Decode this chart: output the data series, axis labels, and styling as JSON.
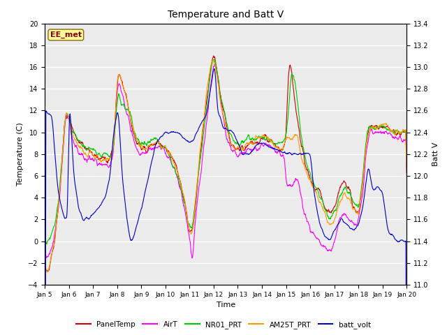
{
  "title": "Temperature and Batt V",
  "xlabel": "Time",
  "ylabel_left": "Temperature (C)",
  "ylabel_right": "Batt V",
  "annotation": "EE_met",
  "x_tick_labels": [
    "Jan 5",
    "Jan 6",
    "Jan 7",
    "Jan 8",
    "Jan 9",
    "Jan 10",
    "Jan 11",
    "Jan 12",
    "Jan 13",
    "Jan 14",
    "Jan 15",
    "Jan 16",
    "Jan 17",
    "Jan 18",
    "Jan 19",
    "Jan 20"
  ],
  "ylim_left": [
    -4,
    20
  ],
  "ylim_right": [
    11.0,
    13.4
  ],
  "yticks_left": [
    -4,
    -2,
    0,
    2,
    4,
    6,
    8,
    10,
    12,
    14,
    16,
    18,
    20
  ],
  "yticks_right": [
    11.0,
    11.2,
    11.4,
    11.6,
    11.8,
    12.0,
    12.2,
    12.4,
    12.6,
    12.8,
    13.0,
    13.2,
    13.4
  ],
  "series_colors": {
    "PanelTemp": "#cc0000",
    "AirT": "#ff00ff",
    "NR01_PRT": "#00cc00",
    "AM25T_PRT": "#ff9900",
    "batt_volt": "#0000cc"
  },
  "legend_labels": [
    "PanelTemp",
    "AirT",
    "NR01_PRT",
    "AM25T_PRT",
    "batt_volt"
  ],
  "bg_color": "#ffffff",
  "plot_bg": "#ebebeb",
  "grid_color": "#ffffff",
  "n_points": 1200
}
